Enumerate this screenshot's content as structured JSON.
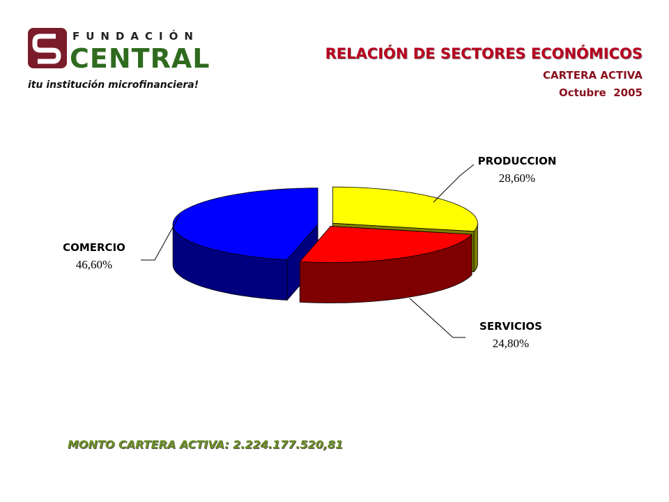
{
  "logo": {
    "kicker": "FUNDACIÓN",
    "name": "CENTRAL",
    "tagline": "itu institución microfinanciera!"
  },
  "chart_data": {
    "type": "pie",
    "title": "RELACIÓN DE SECTORES ECONÓMICOS",
    "subtitle": "CARTERA ACTIVA",
    "period": "Octubre  2005",
    "categories": [
      "PRODUCCION",
      "SERVICIOS",
      "COMERCIO"
    ],
    "values": [
      28.6,
      24.8,
      46.6
    ],
    "value_labels": [
      "28,60%",
      "24,80%",
      "46,60%"
    ],
    "colors": [
      "#ffff00",
      "#ff0000",
      "#0000ff"
    ],
    "note": "MONTO CARTERA ACTIVA: 2.224.177.520,81"
  }
}
